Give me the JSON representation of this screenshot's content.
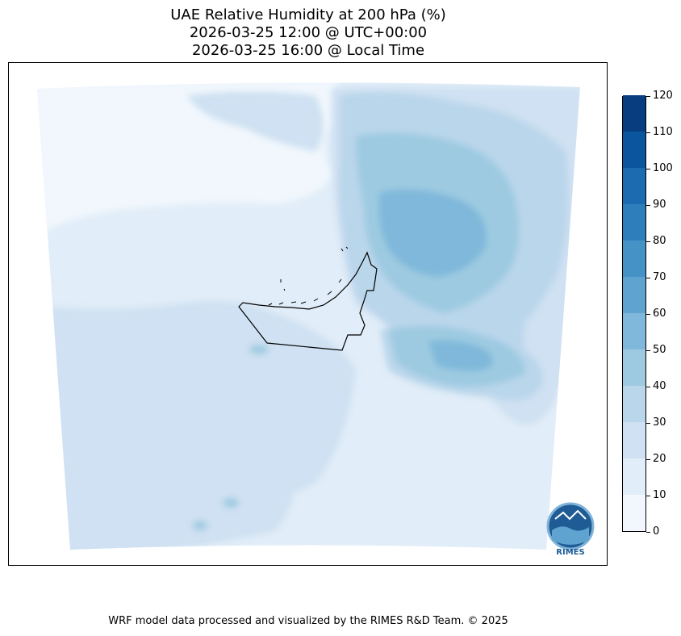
{
  "title": {
    "line1": "UAE Relative Humidity at 200 hPa (%)",
    "line2": "2026-03-25 12:00 @ UTC+00:00",
    "line3": "2026-03-25 16:00 @ Local Time"
  },
  "colorbar": {
    "min": 0,
    "max": 120,
    "ticks": [
      "0",
      "10",
      "20",
      "30",
      "40",
      "50",
      "60",
      "70",
      "80",
      "90",
      "100",
      "110",
      "120"
    ],
    "colors": [
      "#f1f7fd",
      "#e1edf8",
      "#cfe1f2",
      "#bad6eb",
      "#9dcae1",
      "#7fb8da",
      "#5fa3d0",
      "#4592c6",
      "#2f7ebc",
      "#1c6ab0",
      "#0b559f",
      "#083d7f"
    ]
  },
  "logo": {
    "text": "RIMES"
  },
  "footer": "WRF model data processed and visualized by the RIMES R&D Team. © 2025"
}
